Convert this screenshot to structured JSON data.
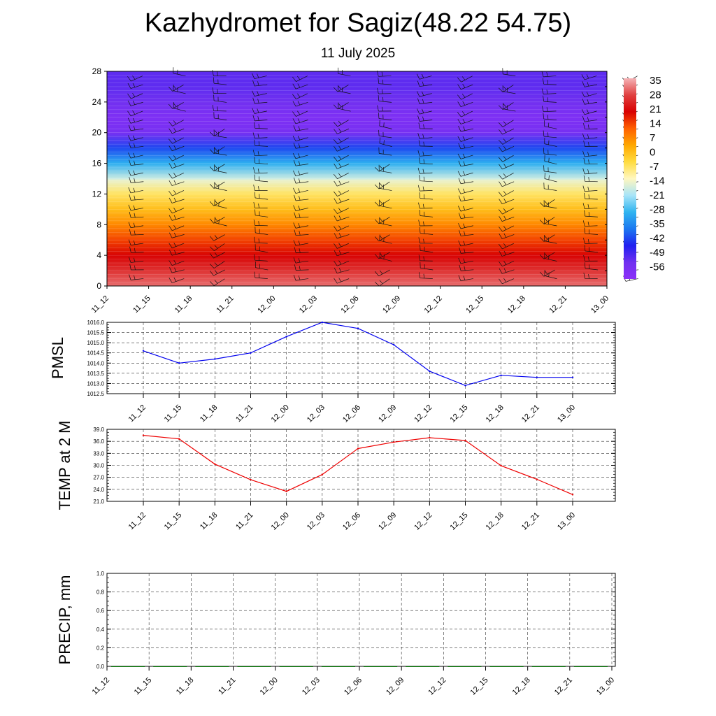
{
  "page": {
    "title": "Kazhydromet for Sagiz(48.22 54.75)",
    "subtitle": "11 July 2025"
  },
  "chart_data": [
    {
      "type": "heatmap",
      "name": "temperature-wind-profile",
      "y_ticks": [
        "0",
        "4",
        "8",
        "12",
        "16",
        "20",
        "24",
        "28"
      ],
      "ylim": [
        0,
        28
      ],
      "x_ticks": [
        "11_12",
        "11_15",
        "11_18",
        "11_21",
        "12_00",
        "12_03",
        "12_06",
        "12_09",
        "12_12",
        "12_15",
        "12_18",
        "12_21",
        "13_00"
      ],
      "colorbar_labels": [
        "35",
        "28",
        "21",
        "14",
        "7",
        "0",
        "-7",
        "-14",
        "-21",
        "-28",
        "-35",
        "-42",
        "-49",
        "-56"
      ],
      "colorbar_range": [
        -60,
        38
      ],
      "colorbar_colors": [
        "#f5b3b6",
        "#e04040",
        "#d80000",
        "#ff6000",
        "#ffa800",
        "#ffdc40",
        "#fff7c0",
        "#a8e4f8",
        "#30b4f0",
        "#1c78f0",
        "#2020f0",
        "#7030f0",
        "#8c30f8"
      ],
      "layers": [
        {
          "level": 0,
          "temp": 33
        },
        {
          "level": 2,
          "temp": 28
        },
        {
          "level": 4,
          "temp": 22
        },
        {
          "level": 6,
          "temp": 16
        },
        {
          "level": 8,
          "temp": 9
        },
        {
          "level": 10,
          "temp": 2
        },
        {
          "level": 12,
          "temp": -5
        },
        {
          "level": 13.8,
          "temp": -13
        },
        {
          "level": 14,
          "temp": -16
        },
        {
          "level": 16,
          "temp": -28
        },
        {
          "level": 18,
          "temp": -40
        },
        {
          "level": 20,
          "temp": -54
        },
        {
          "level": 22,
          "temp": -56
        },
        {
          "level": 24,
          "temp": -52
        },
        {
          "level": 26,
          "temp": -50
        },
        {
          "level": 28,
          "temp": -50
        }
      ],
      "wind_barbs": true
    },
    {
      "type": "line",
      "name": "PMSL",
      "ylabel": "PMSL",
      "x": [
        "11_12",
        "11_15",
        "11_18",
        "11_21",
        "12_00",
        "12_03",
        "12_06",
        "12_09",
        "12_12",
        "12_15",
        "12_18",
        "12_21",
        "13_00"
      ],
      "series": [
        {
          "color": "#0000ee",
          "values": [
            1014.6,
            1014.0,
            1014.2,
            1014.5,
            1015.3,
            1016.0,
            1015.7,
            1014.9,
            1013.6,
            1012.9,
            1013.4,
            1013.3,
            1013.3
          ]
        }
      ],
      "ylim": [
        1012.5,
        1016.0
      ],
      "y_ticks": [
        "1012.5",
        "1013.0",
        "1013.5",
        "1014.0",
        "1014.5",
        "1015.0",
        "1015.5",
        "1016.0"
      ],
      "grid": true
    },
    {
      "type": "line",
      "name": "TEMP at 2 M",
      "ylabel": "TEMP at 2 M",
      "x": [
        "11_12",
        "11_15",
        "11_18",
        "11_21",
        "12_00",
        "12_03",
        "12_06",
        "12_09",
        "12_12",
        "12_15",
        "12_18",
        "12_21",
        "13_00"
      ],
      "series": [
        {
          "color": "#ee0000",
          "values": [
            37.5,
            36.6,
            30.3,
            26.4,
            23.5,
            27.7,
            34.2,
            35.8,
            36.9,
            36.2,
            29.9,
            26.5,
            22.7
          ]
        }
      ],
      "ylim": [
        21.0,
        39.0
      ],
      "y_ticks": [
        "21.0",
        "24.0",
        "27.0",
        "30.0",
        "33.0",
        "36.0",
        "39.0"
      ],
      "grid": true
    },
    {
      "type": "bar",
      "name": "PRECIP, mm",
      "ylabel": "PRECIP, mm",
      "x_ticks": [
        "11_12",
        "11_15",
        "11_18",
        "11_21",
        "12_00",
        "12_03",
        "12_06",
        "12_09",
        "12_12",
        "12_15",
        "12_18",
        "12_21",
        "13_00"
      ],
      "values": [
        0,
        0,
        0,
        0,
        0,
        0,
        0,
        0,
        0,
        0,
        0,
        0
      ],
      "bar_color": "#008000",
      "ylim": [
        0.0,
        1.0
      ],
      "y_ticks": [
        "0.0",
        "0.2",
        "0.4",
        "0.6",
        "0.8",
        "1.0"
      ],
      "grid": true
    }
  ]
}
